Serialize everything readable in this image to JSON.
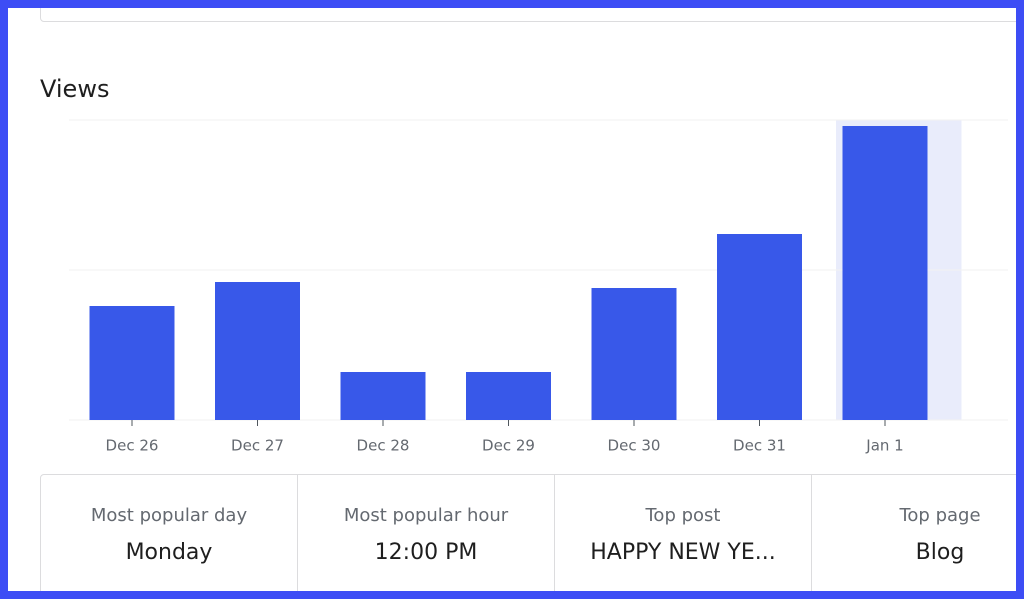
{
  "chart_data": {
    "type": "bar",
    "title": "Views",
    "categories": [
      "Dec 26",
      "Dec 27",
      "Dec 28",
      "Dec 29",
      "Dec 30",
      "Dec 31",
      "Jan 1"
    ],
    "values": [
      19,
      23,
      8,
      8,
      22,
      31,
      49
    ],
    "color": "#3858e9",
    "selected": "Jan 1",
    "selected_color": "#e9ecfb",
    "ylim": [
      0,
      50
    ],
    "yticks": [
      0,
      25,
      50
    ],
    "grid": true
  },
  "stats": [
    {
      "label": "Most popular day",
      "value": "Monday"
    },
    {
      "label": "Most popular hour",
      "value": "12:00 PM"
    },
    {
      "label": "Top post",
      "value": "HAPPY NEW YE..."
    },
    {
      "label": "Top page",
      "value": "Blog"
    }
  ]
}
